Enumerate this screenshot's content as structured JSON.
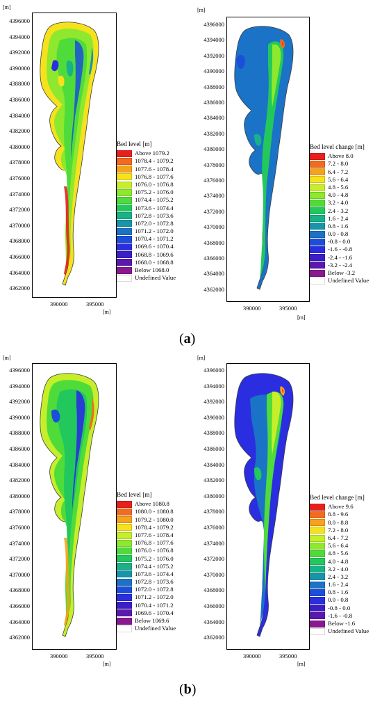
{
  "panels": {
    "a_left": {
      "unit_top": "[m]",
      "unit_bottom": "[m]",
      "yticks": [
        "4396000",
        "4394000",
        "4392000",
        "4390000",
        "4388000",
        "4386000",
        "4384000",
        "4382000",
        "4380000",
        "4378000",
        "4376000",
        "4374000",
        "4372000",
        "4370000",
        "4368000",
        "4366000",
        "4364000",
        "4362000"
      ],
      "xticks": [
        "390000",
        "395000"
      ],
      "legend_title": "Bed level [m]",
      "legend": [
        {
          "label": "Above  1079.2",
          "color": "#e8201c"
        },
        {
          "label": "1078.4 - 1079.2",
          "color": "#f26b1e"
        },
        {
          "label": "1077.6 - 1078.4",
          "color": "#f7a21b"
        },
        {
          "label": "1076.8 - 1077.6",
          "color": "#f5e21c"
        },
        {
          "label": "1076.0 - 1076.8",
          "color": "#c6ee2a"
        },
        {
          "label": "1075.2 - 1076.0",
          "color": "#8ee82e"
        },
        {
          "label": "1074.4 - 1075.2",
          "color": "#4fdc3a"
        },
        {
          "label": "1073.6 - 1074.4",
          "color": "#23c85c"
        },
        {
          "label": "1072.8 - 1073.6",
          "color": "#17b288"
        },
        {
          "label": "1072.0 - 1072.8",
          "color": "#1895a8"
        },
        {
          "label": "1071.2 - 1072.0",
          "color": "#1a73c6"
        },
        {
          "label": "1070.4 - 1071.2",
          "color": "#1c4fd9"
        },
        {
          "label": "1069.6 - 1070.4",
          "color": "#2a2ee0"
        },
        {
          "label": "1068.8 - 1069.6",
          "color": "#3b1ec6"
        },
        {
          "label": "1068.0 - 1068.8",
          "color": "#5a18b0"
        },
        {
          "label": "Below  1068.0",
          "color": "#8a1890"
        },
        {
          "label": "Undefined Value",
          "color": "#ffffff"
        }
      ]
    },
    "a_right": {
      "unit_top": "[m]",
      "unit_bottom": "[m]",
      "yticks": [
        "4396000",
        "4394000",
        "4392000",
        "4390000",
        "4388000",
        "4386000",
        "4384000",
        "4382000",
        "4380000",
        "4378000",
        "4376000",
        "4374000",
        "4372000",
        "4370000",
        "4368000",
        "4366000",
        "4364000",
        "4362000"
      ],
      "xticks": [
        "390000",
        "395000"
      ],
      "legend_title": "Bed level change [m]",
      "legend": [
        {
          "label": "Above  8.0",
          "color": "#e8201c"
        },
        {
          "label": "7.2 -  8.0",
          "color": "#f26b1e"
        },
        {
          "label": "6.4 -  7.2",
          "color": "#f7a21b"
        },
        {
          "label": "5.6 -  6.4",
          "color": "#f5e21c"
        },
        {
          "label": "4.8 -  5.6",
          "color": "#c6ee2a"
        },
        {
          "label": "4.0 -  4.8",
          "color": "#8ee82e"
        },
        {
          "label": "3.2 -  4.0",
          "color": "#4fdc3a"
        },
        {
          "label": "2.4 -  3.2",
          "color": "#23c85c"
        },
        {
          "label": "1.6 -  2.4",
          "color": "#17b288"
        },
        {
          "label": "0.8 -  1.6",
          "color": "#1895a8"
        },
        {
          "label": "0.0 -  0.8",
          "color": "#1a73c6"
        },
        {
          "label": "-0.8 -  0.0",
          "color": "#1c4fd9"
        },
        {
          "label": "-1.6 - -0.8",
          "color": "#2a2ee0"
        },
        {
          "label": "-2.4 - -1.6",
          "color": "#3b1ec6"
        },
        {
          "label": "-3.2 - -2.4",
          "color": "#5a18b0"
        },
        {
          "label": "Below -3.2",
          "color": "#8a1890"
        },
        {
          "label": "Undefined Value",
          "color": "#ffffff"
        }
      ]
    },
    "b_left": {
      "unit_top": "[m]",
      "unit_bottom": "[m]",
      "yticks": [
        "4396000",
        "4394000",
        "4392000",
        "4390000",
        "4388000",
        "4386000",
        "4384000",
        "4382000",
        "4380000",
        "4378000",
        "4376000",
        "4374000",
        "4372000",
        "4370000",
        "4368000",
        "4366000",
        "4364000",
        "4362000"
      ],
      "xticks": [
        "390000",
        "395000"
      ],
      "legend_title": "Bed level [m]",
      "legend": [
        {
          "label": "Above  1080.8",
          "color": "#e8201c"
        },
        {
          "label": "1080.0 - 1080.8",
          "color": "#f26b1e"
        },
        {
          "label": "1079.2 - 1080.0",
          "color": "#f7a21b"
        },
        {
          "label": "1078.4 - 1079.2",
          "color": "#f5e21c"
        },
        {
          "label": "1077.6 - 1078.4",
          "color": "#c6ee2a"
        },
        {
          "label": "1076.8 - 1077.6",
          "color": "#8ee82e"
        },
        {
          "label": "1076.0 - 1076.8",
          "color": "#4fdc3a"
        },
        {
          "label": "1075.2 - 1076.0",
          "color": "#23c85c"
        },
        {
          "label": "1074.4 - 1075.2",
          "color": "#17b288"
        },
        {
          "label": "1073.6 - 1074.4",
          "color": "#1895a8"
        },
        {
          "label": "1072.8 - 1073.6",
          "color": "#1a73c6"
        },
        {
          "label": "1072.0 - 1072.8",
          "color": "#1c4fd9"
        },
        {
          "label": "1071.2 - 1072.0",
          "color": "#2a2ee0"
        },
        {
          "label": "1070.4 - 1071.2",
          "color": "#3b1ec6"
        },
        {
          "label": "1069.6 - 1070.4",
          "color": "#5a18b0"
        },
        {
          "label": "Below  1069.6",
          "color": "#8a1890"
        },
        {
          "label": "Undefined Value",
          "color": "#ffffff"
        }
      ]
    },
    "b_right": {
      "unit_top": "[m]",
      "unit_bottom": "[m]",
      "yticks": [
        "4396000",
        "4394000",
        "4392000",
        "4390000",
        "4388000",
        "4386000",
        "4384000",
        "4382000",
        "4380000",
        "4378000",
        "4376000",
        "4374000",
        "4372000",
        "4370000",
        "4368000",
        "4366000",
        "4364000",
        "4362000"
      ],
      "xticks": [
        "390000",
        "395000"
      ],
      "legend_title": "Bed level change [m]",
      "legend": [
        {
          "label": "Above  9.6",
          "color": "#e8201c"
        },
        {
          "label": "8.8 -  9.6",
          "color": "#f26b1e"
        },
        {
          "label": "8.0 -  8.8",
          "color": "#f7a21b"
        },
        {
          "label": "7.2 -  8.0",
          "color": "#f5e21c"
        },
        {
          "label": "6.4 -  7.2",
          "color": "#c6ee2a"
        },
        {
          "label": "5.6 -  6.4",
          "color": "#8ee82e"
        },
        {
          "label": "4.8 -  5.6",
          "color": "#4fdc3a"
        },
        {
          "label": "4.0 -  4.8",
          "color": "#23c85c"
        },
        {
          "label": "3.2 -  4.0",
          "color": "#17b288"
        },
        {
          "label": "2.4 -  3.2",
          "color": "#1895a8"
        },
        {
          "label": "1.6 -  2.4",
          "color": "#1a73c6"
        },
        {
          "label": "0.8 -  1.6",
          "color": "#1c4fd9"
        },
        {
          "label": "0.0 -  0.8",
          "color": "#2a2ee0"
        },
        {
          "label": "-0.8 -  0.0",
          "color": "#3b1ec6"
        },
        {
          "label": "-1.6 - -0.8",
          "color": "#5a18b0"
        },
        {
          "label": "Below -1.6",
          "color": "#8a1890"
        },
        {
          "label": "Undefined Value",
          "color": "#ffffff"
        }
      ]
    }
  },
  "captions": {
    "a": "a",
    "b": "b"
  }
}
